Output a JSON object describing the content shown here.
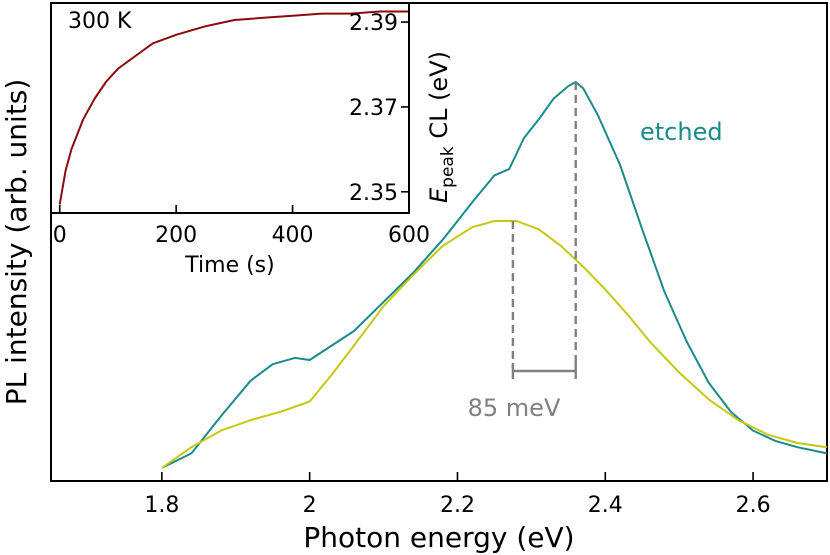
{
  "chart_data": [
    {
      "type": "line",
      "xlabel": "Photon energy (eV)",
      "ylabel": "PL intensity (arb. units)",
      "xlim": [
        1.65,
        2.7
      ],
      "ylim": [
        0,
        1.0
      ],
      "x_ticks": [
        1.8,
        2.0,
        2.2,
        2.4,
        2.6
      ],
      "x_tick_labels": [
        "1.8",
        "2",
        "2.2",
        "2.4",
        "2.6"
      ],
      "y_ticks_visible": false,
      "series": [
        {
          "name": "etched",
          "color": "#1a8a8a",
          "x": [
            1.8,
            1.84,
            1.88,
            1.92,
            1.95,
            1.98,
            2.0,
            2.03,
            2.06,
            2.1,
            2.14,
            2.18,
            2.22,
            2.25,
            2.27,
            2.29,
            2.31,
            2.33,
            2.35,
            2.36,
            2.37,
            2.39,
            2.42,
            2.45,
            2.48,
            2.51,
            2.54,
            2.57,
            2.6,
            2.63,
            2.66,
            2.7
          ],
          "y": [
            0.005,
            0.04,
            0.13,
            0.215,
            0.255,
            0.27,
            0.265,
            0.3,
            0.335,
            0.405,
            0.475,
            0.555,
            0.645,
            0.71,
            0.725,
            0.8,
            0.845,
            0.895,
            0.925,
            0.935,
            0.92,
            0.855,
            0.735,
            0.58,
            0.43,
            0.31,
            0.21,
            0.14,
            0.095,
            0.07,
            0.055,
            0.04
          ]
        },
        {
          "name": "",
          "color": "#c7c714",
          "x": [
            1.8,
            1.84,
            1.88,
            1.92,
            1.96,
            2.0,
            2.03,
            2.06,
            2.1,
            2.14,
            2.18,
            2.22,
            2.25,
            2.28,
            2.31,
            2.34,
            2.37,
            2.4,
            2.43,
            2.46,
            2.5,
            2.54,
            2.58,
            2.62,
            2.66,
            2.7
          ],
          "y": [
            0.005,
            0.055,
            0.095,
            0.12,
            0.14,
            0.165,
            0.23,
            0.3,
            0.395,
            0.47,
            0.54,
            0.585,
            0.6,
            0.6,
            0.58,
            0.54,
            0.49,
            0.435,
            0.375,
            0.31,
            0.235,
            0.17,
            0.12,
            0.085,
            0.065,
            0.055
          ]
        }
      ],
      "annotations": {
        "series_label": "etched",
        "peak_marker_1_x": 2.275,
        "peak_marker_2_x": 2.36,
        "split_label": "85 meV",
        "marker_color": "#808080"
      }
    },
    {
      "type": "line",
      "inset": true,
      "title": "300 K",
      "xlabel": "Time (s)",
      "ylabel_main": "E",
      "ylabel_sub": "peak",
      "ylabel_rest": " CL (eV)",
      "xlim": [
        -15,
        600
      ],
      "ylim": [
        2.345,
        2.3945
      ],
      "x_ticks": [
        0,
        200,
        400,
        600
      ],
      "x_tick_labels": [
        "0",
        "200",
        "400",
        "600"
      ],
      "y_ticks": [
        2.35,
        2.37,
        2.39
      ],
      "y_tick_labels": [
        "2.35",
        "2.37",
        "2.39"
      ],
      "series": [
        {
          "name": "",
          "color": "#8b0a0a",
          "x": [
            0,
            10,
            20,
            40,
            60,
            80,
            100,
            130,
            160,
            200,
            250,
            300,
            350,
            400,
            450,
            500,
            550,
            600
          ],
          "y": [
            2.347,
            2.355,
            2.36,
            2.367,
            2.372,
            2.376,
            2.379,
            2.382,
            2.385,
            2.387,
            2.389,
            2.3905,
            2.391,
            2.3915,
            2.392,
            2.392,
            2.3925,
            2.3925
          ]
        }
      ]
    }
  ]
}
